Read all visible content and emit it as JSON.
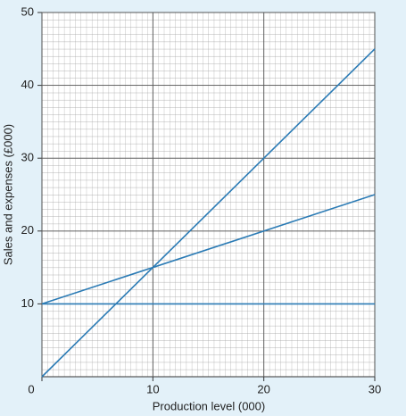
{
  "chart_data": {
    "type": "line",
    "x_label": "Production level (000)",
    "y_label": "Sales and expenses (£000)",
    "x": [
      0,
      30
    ],
    "series": [
      {
        "color": "#2b7bb5",
        "values": [
          0,
          45
        ]
      },
      {
        "color": "#2b7bb5",
        "values": [
          10,
          25
        ]
      },
      {
        "color": "#2b7bb5",
        "values": [
          10,
          10
        ]
      }
    ],
    "xlim": [
      0,
      30
    ],
    "ylim": [
      0,
      50
    ],
    "xticks": [
      0,
      10,
      20,
      30
    ],
    "yticks": [
      10,
      20,
      30,
      40,
      50
    ],
    "grid": true
  }
}
